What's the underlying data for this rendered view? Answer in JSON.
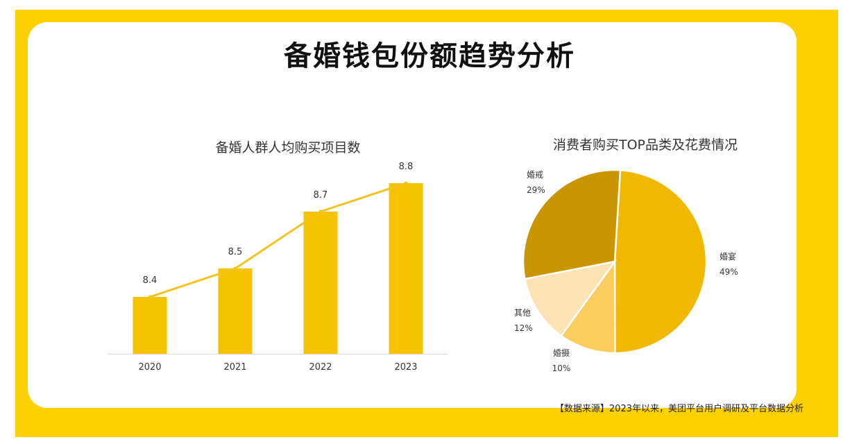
{
  "title": "备婚钱包份额趋势分析",
  "source": "【数据来源】2023年以来，美团平台用户调研及平台数据分析",
  "colors": {
    "frame": "#FDD000",
    "bar": "#F7C200",
    "line": "#F4C21D"
  },
  "chart_data": [
    {
      "type": "bar",
      "title": "备婚人群人均购买项目数",
      "categories": [
        "2020",
        "2021",
        "2022",
        "2023"
      ],
      "values": [
        8.4,
        8.5,
        8.7,
        8.8
      ],
      "data_labels": [
        "8.4",
        "8.5",
        "8.7",
        "8.8"
      ],
      "overlay": "line",
      "ylim": [
        8.2,
        8.8
      ]
    },
    {
      "type": "pie",
      "title": "消费者购买TOP品类及花费情况",
      "slices": [
        {
          "label": "婚宴",
          "pct_text": "49%",
          "value": 49,
          "color": "#F0B800"
        },
        {
          "label": "婚摄",
          "pct_text": "10%",
          "value": 10,
          "color": "#FBCD5E"
        },
        {
          "label": "其他",
          "pct_text": "12%",
          "value": 12,
          "color": "#FDE3B4"
        },
        {
          "label": "婚戒",
          "pct_text": "29%",
          "value": 29,
          "color": "#C99600"
        }
      ]
    }
  ]
}
